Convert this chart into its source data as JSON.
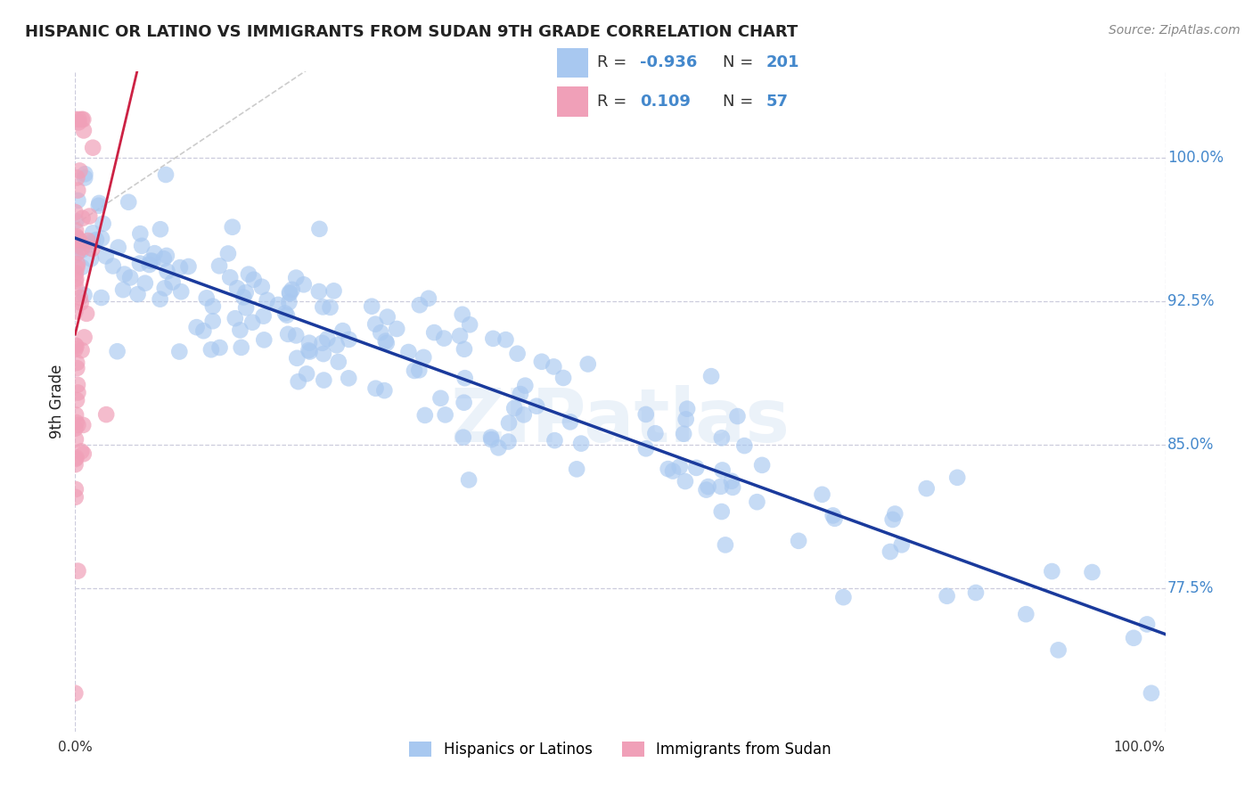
{
  "title": "HISPANIC OR LATINO VS IMMIGRANTS FROM SUDAN 9TH GRADE CORRELATION CHART",
  "source": "Source: ZipAtlas.com",
  "ylabel": "9th Grade",
  "ytick_labels": [
    "77.5%",
    "85.0%",
    "92.5%",
    "100.0%"
  ],
  "ytick_values": [
    0.775,
    0.85,
    0.925,
    1.0
  ],
  "xmin": 0.0,
  "xmax": 1.0,
  "ymin": 0.7,
  "ymax": 1.045,
  "legend_R_blue": "-0.936",
  "legend_N_blue": "201",
  "legend_R_pink": "0.109",
  "legend_N_pink": "57",
  "legend_label_blue": "Hispanics or Latinos",
  "legend_label_pink": "Immigrants from Sudan",
  "blue_color": "#a8c8f0",
  "blue_line_color": "#1a3a9c",
  "pink_color": "#f0a0b8",
  "pink_line_color": "#cc2244",
  "gray_dash_color": "#cccccc",
  "watermark": "ZIPatlas",
  "title_color": "#222222",
  "source_color": "#888888",
  "ylabel_color": "#222222",
  "tick_label_color": "#4488cc",
  "grid_color": "#ccccdd"
}
